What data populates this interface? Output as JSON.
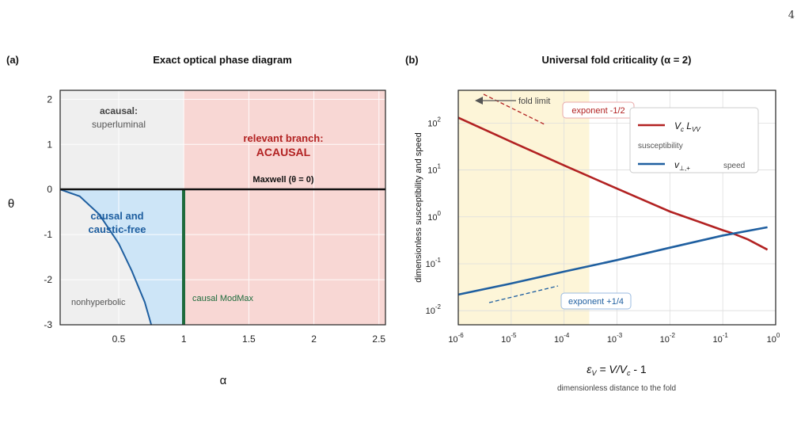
{
  "page": {
    "number": "4"
  },
  "panel_a": {
    "tag": "(a)",
    "title": "Exact optical phase diagram",
    "xlabel": "α",
    "ylabel": "θ",
    "xticks": [
      "0.5",
      "1",
      "1.5",
      "2",
      "2.5"
    ],
    "yticks": [
      "2",
      "1",
      "0",
      "-1",
      "-2",
      "-3"
    ],
    "regions": {
      "acausal_title": "acausal:",
      "acausal_sub": "superluminal",
      "relevant_title": "relevant branch:",
      "relevant_sub": "ACAUSAL",
      "maxwell": "Maxwell (θ = 0)",
      "causal_line1": "causal and",
      "causal_line2": "caustic-free",
      "nonhyperbolic": "nonhyperbolic",
      "modmax": "causal ModMax"
    },
    "colors": {
      "grey_region": "#efefef",
      "red_region": "#f8d7d4",
      "blue_region": "#cde5f7",
      "boundary_curve": "#1f5fa0",
      "modmax_line": "#1e6b3c",
      "relevant_text": "#b22222",
      "causal_text": "#1f5fa0",
      "modmax_text": "#1e6b3c"
    }
  },
  "panel_b": {
    "tag": "(b)",
    "title": "Universal fold criticality (α = 2)",
    "xlabel": "ε",
    "xlabel_sub": "V",
    "xlabel_rest": " = V/V",
    "xlabel_sub2": "c",
    "xlabel_tail": " - 1",
    "xcaption": "dimensionless distance to the fold",
    "ylabel": "dimensionless susceptibility and speed",
    "xticks": [
      "10",
      "10",
      "10",
      "10",
      "10",
      "10",
      "10"
    ],
    "xtick_exps": [
      "-6",
      "-5",
      "-4",
      "-3",
      "-2",
      "-1",
      "0"
    ],
    "yticks": [
      "10",
      "10",
      "10",
      "10",
      "10"
    ],
    "ytick_exps": [
      "2",
      "1",
      "0",
      "-1",
      "-2"
    ],
    "annotations": {
      "fold_limit": "fold limit",
      "exponent_red": "exponent -1/2",
      "exponent_blue": "exponent +1/4"
    },
    "legend": {
      "red_label": "V",
      "red_sub1": "c",
      "red_mid": " L",
      "red_sub2": "VV",
      "red_desc": "susceptibility",
      "blue_label": "v",
      "blue_sub": "⊥,+",
      "blue_desc": "speed"
    },
    "colors": {
      "red": "#b22222",
      "blue": "#1f5fa0",
      "shade": "#fdf5d8"
    }
  },
  "chart_data": [
    {
      "type": "area",
      "title": "Exact optical phase diagram",
      "xlabel": "α",
      "ylabel": "θ",
      "xlim": [
        0.05,
        2.55
      ],
      "ylim": [
        -3,
        2.2
      ],
      "boundary_curve": {
        "x": [
          0.05,
          0.2,
          0.35,
          0.5,
          0.6,
          0.7,
          0.75
        ],
        "y": [
          0.0,
          -0.15,
          -0.55,
          -1.2,
          -1.8,
          -2.5,
          -3.0
        ]
      },
      "maxwell_line": {
        "theta": 0
      },
      "modmax_line": {
        "alpha": 1,
        "theta_range": [
          -3,
          0
        ]
      }
    },
    {
      "type": "line",
      "title": "Universal fold criticality (α = 2)",
      "xscale": "log",
      "yscale": "log",
      "xlim": [
        1e-06,
        1
      ],
      "ylim": [
        0.005,
        500
      ],
      "shaded_x_range": [
        1e-06,
        0.0003
      ],
      "series": [
        {
          "name": "V_c L_VV",
          "x": [
            1e-06,
            1e-05,
            0.0001,
            0.001,
            0.01,
            0.1,
            0.15,
            0.3,
            0.7
          ],
          "y": [
            130,
            40,
            12.5,
            4.0,
            1.3,
            0.52,
            0.45,
            0.33,
            0.2
          ]
        },
        {
          "name": "v_⊥,+",
          "x": [
            1e-06,
            1e-05,
            0.0001,
            0.001,
            0.01,
            0.1,
            0.7
          ],
          "y": [
            0.022,
            0.038,
            0.068,
            0.12,
            0.22,
            0.4,
            0.6
          ]
        }
      ]
    }
  ]
}
